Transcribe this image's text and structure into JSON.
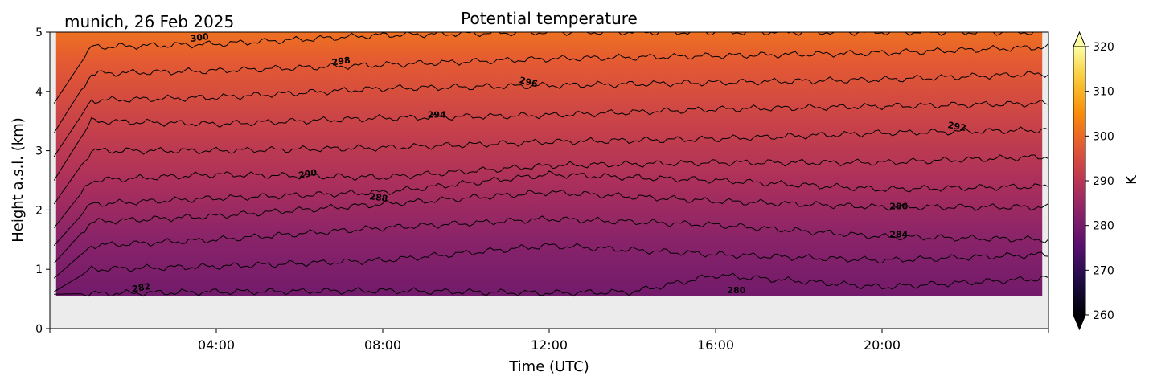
{
  "chart_data": {
    "type": "heatmap",
    "title": "Potential temperature",
    "subtitle": "munich, 26 Feb 2025",
    "xlabel": "Time (UTC)",
    "ylabel": "Height a.s.l. (km)",
    "x_unit": "hours UTC",
    "xlim": [
      0,
      24
    ],
    "ylim": [
      0,
      5
    ],
    "x_ticks": [
      {
        "value": 4,
        "label": "04:00"
      },
      {
        "value": 8,
        "label": "08:00"
      },
      {
        "value": 12,
        "label": "12:00"
      },
      {
        "value": 16,
        "label": "16:00"
      },
      {
        "value": 20,
        "label": "20:00"
      }
    ],
    "y_ticks": [
      {
        "value": 0,
        "label": "0"
      },
      {
        "value": 1,
        "label": "1"
      },
      {
        "value": 2,
        "label": "2"
      },
      {
        "value": 3,
        "label": "3"
      },
      {
        "value": 4,
        "label": "4"
      },
      {
        "value": 5,
        "label": "5"
      }
    ],
    "data_bottom_km": 0.55,
    "missing_color": "#ececec",
    "colorbar": {
      "label": "K",
      "range": [
        260,
        320
      ],
      "extend": "both",
      "colormap": "inferno",
      "ticks": [
        {
          "value": 260,
          "label": "260"
        },
        {
          "value": 270,
          "label": "270"
        },
        {
          "value": 280,
          "label": "280"
        },
        {
          "value": 290,
          "label": "290"
        },
        {
          "value": 300,
          "label": "300"
        },
        {
          "value": 310,
          "label": "310"
        },
        {
          "value": 320,
          "label": "320"
        }
      ]
    },
    "contours": [
      {
        "level": 280,
        "points": [
          [
            0.1,
            0.58
          ],
          [
            2,
            0.6
          ],
          [
            4,
            0.62
          ],
          [
            8,
            0.64
          ],
          [
            12,
            0.6
          ],
          [
            14,
            0.62
          ],
          [
            16,
            0.9
          ],
          [
            18,
            0.8
          ],
          [
            20,
            0.7
          ],
          [
            24,
            0.85
          ]
        ]
      },
      {
        "level": 282,
        "points": [
          [
            0.1,
            0.62
          ],
          [
            1,
            1.0
          ],
          [
            4,
            1.05
          ],
          [
            8,
            1.15
          ],
          [
            12,
            1.4
          ],
          [
            16,
            1.25
          ],
          [
            20,
            1.15
          ],
          [
            24,
            1.25
          ]
        ]
      },
      {
        "level": 284,
        "points": [
          [
            0.1,
            0.85
          ],
          [
            1,
            1.4
          ],
          [
            4,
            1.5
          ],
          [
            8,
            1.7
          ],
          [
            12,
            1.85
          ],
          [
            16,
            1.75
          ],
          [
            20,
            1.55
          ],
          [
            24,
            1.5
          ]
        ]
      },
      {
        "level": 286,
        "points": [
          [
            0.1,
            1.1
          ],
          [
            1,
            1.8
          ],
          [
            4,
            1.9
          ],
          [
            8,
            2.1
          ],
          [
            12,
            2.3
          ],
          [
            16,
            2.15
          ],
          [
            20,
            2.05
          ],
          [
            24,
            2.05
          ]
        ]
      },
      {
        "level": 288,
        "points": [
          [
            0.1,
            1.4
          ],
          [
            1,
            2.1
          ],
          [
            4,
            2.2
          ],
          [
            8,
            2.3
          ],
          [
            12,
            2.6
          ],
          [
            16,
            2.5
          ],
          [
            20,
            2.35
          ],
          [
            24,
            2.4
          ]
        ]
      },
      {
        "level": 290,
        "points": [
          [
            0.1,
            1.7
          ],
          [
            1,
            2.5
          ],
          [
            4,
            2.6
          ],
          [
            8,
            2.55
          ],
          [
            12,
            2.75
          ],
          [
            16,
            2.8
          ],
          [
            20,
            2.8
          ],
          [
            24,
            2.9
          ]
        ]
      },
      {
        "level": 292,
        "points": [
          [
            0.1,
            2.1
          ],
          [
            1,
            3.0
          ],
          [
            4,
            3.0
          ],
          [
            8,
            3.05
          ],
          [
            12,
            3.15
          ],
          [
            16,
            3.2
          ],
          [
            20,
            3.3
          ],
          [
            24,
            3.35
          ]
        ]
      },
      {
        "level": 294,
        "points": [
          [
            0.1,
            2.5
          ],
          [
            1,
            3.5
          ],
          [
            4,
            3.45
          ],
          [
            8,
            3.55
          ],
          [
            12,
            3.6
          ],
          [
            16,
            3.7
          ],
          [
            20,
            3.75
          ],
          [
            24,
            3.8
          ]
        ]
      },
      {
        "level": 296,
        "points": [
          [
            0.1,
            2.9
          ],
          [
            1,
            3.85
          ],
          [
            4,
            3.9
          ],
          [
            8,
            4.05
          ],
          [
            12,
            4.1
          ],
          [
            16,
            4.15
          ],
          [
            20,
            4.2
          ],
          [
            24,
            4.3
          ]
        ]
      },
      {
        "level": 298,
        "points": [
          [
            0.1,
            3.3
          ],
          [
            1,
            4.3
          ],
          [
            4,
            4.35
          ],
          [
            8,
            4.45
          ],
          [
            12,
            4.55
          ],
          [
            16,
            4.6
          ],
          [
            20,
            4.65
          ],
          [
            24,
            4.75
          ]
        ]
      },
      {
        "level": 300,
        "points": [
          [
            0.1,
            3.8
          ],
          [
            1,
            4.75
          ],
          [
            4,
            4.8
          ],
          [
            8,
            4.95
          ],
          [
            12,
            5.0
          ],
          [
            16,
            5.0
          ],
          [
            20,
            5.0
          ],
          [
            24,
            5.0
          ]
        ]
      }
    ],
    "contour_labels": [
      {
        "text": "300",
        "x": 3.6,
        "y": 4.9,
        "angle": 8
      },
      {
        "text": "298",
        "x": 7.0,
        "y": 4.5,
        "angle": 8
      },
      {
        "text": "296",
        "x": 11.5,
        "y": 4.15,
        "angle": -14
      },
      {
        "text": "294",
        "x": 9.3,
        "y": 3.6,
        "angle": 0
      },
      {
        "text": "292",
        "x": 21.8,
        "y": 3.4,
        "angle": -10
      },
      {
        "text": "290",
        "x": 6.2,
        "y": 2.6,
        "angle": 10
      },
      {
        "text": "288",
        "x": 7.9,
        "y": 2.2,
        "angle": -8
      },
      {
        "text": "286",
        "x": 20.4,
        "y": 2.05,
        "angle": 0
      },
      {
        "text": "284",
        "x": 20.4,
        "y": 1.58,
        "angle": 0
      },
      {
        "text": "282",
        "x": 2.2,
        "y": 0.68,
        "angle": 10
      },
      {
        "text": "280",
        "x": 16.5,
        "y": 0.64,
        "angle": 0
      }
    ],
    "field_gradient": [
      {
        "y": 0.55,
        "value": 279.5
      },
      {
        "y": 1.5,
        "value": 283
      },
      {
        "y": 2.5,
        "value": 288
      },
      {
        "y": 3.5,
        "value": 293
      },
      {
        "y": 4.5,
        "value": 298
      },
      {
        "y": 5.0,
        "value": 301
      }
    ]
  }
}
